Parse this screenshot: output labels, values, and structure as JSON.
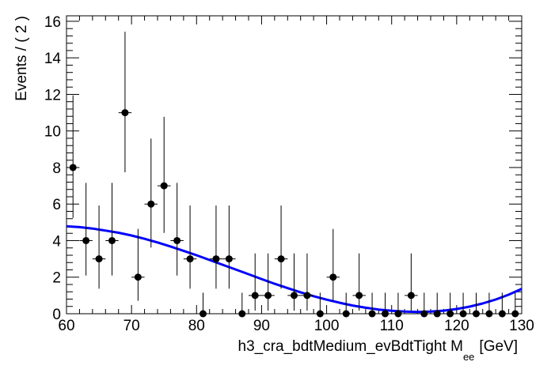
{
  "chart_data": {
    "type": "scatter",
    "xlabel_main": "h3_cra_bdtMedium_evBdtTight  M",
    "xlabel_sub": "ee",
    "xlabel_unit": "[GeV]",
    "ylabel": "Events / ( 2 )",
    "xlim": [
      60,
      130
    ],
    "ylim": [
      0,
      16.3
    ],
    "x_ticks": [
      60,
      70,
      80,
      90,
      100,
      110,
      120,
      130
    ],
    "y_ticks": [
      0,
      2,
      4,
      6,
      8,
      10,
      12,
      14,
      16
    ],
    "bin_width": 2,
    "series": [
      {
        "kind": "data-points",
        "x": [
          61,
          63,
          65,
          67,
          69,
          71,
          73,
          75,
          77,
          79,
          81,
          83,
          85,
          87,
          89,
          91,
          93,
          95,
          97,
          99,
          101,
          103,
          105,
          107,
          109,
          111,
          113,
          115,
          117,
          119,
          121,
          123,
          125,
          127,
          129
        ],
        "y": [
          8,
          4,
          3,
          4,
          11,
          2,
          6,
          7,
          4,
          3,
          0,
          3,
          3,
          0,
          1,
          1,
          3,
          1,
          1,
          0,
          2,
          0,
          1,
          0,
          0,
          0,
          1,
          0,
          0,
          0,
          0,
          0,
          0,
          0,
          0
        ],
        "err_low": [
          2.76,
          1.91,
          1.63,
          1.91,
          3.26,
          1.29,
          2.38,
          2.58,
          1.91,
          1.63,
          0,
          1.63,
          1.63,
          0,
          0.83,
          0.83,
          1.63,
          0.83,
          0.83,
          0,
          1.29,
          0,
          0.83,
          0,
          0,
          0,
          0.83,
          0,
          0,
          0,
          0,
          0,
          0,
          0,
          0
        ],
        "err_high": [
          3.95,
          3.16,
          2.92,
          3.16,
          4.43,
          2.64,
          3.58,
          3.77,
          3.16,
          2.92,
          1.15,
          2.92,
          2.92,
          1.15,
          2.3,
          2.3,
          2.92,
          2.3,
          2.3,
          1.15,
          2.64,
          1.15,
          2.3,
          1.15,
          1.15,
          1.15,
          2.3,
          1.15,
          1.15,
          1.15,
          1.15,
          1.15,
          1.15,
          1.15,
          1.15
        ],
        "color": "#000000"
      },
      {
        "kind": "fit-curve",
        "x": [
          60,
          62,
          64,
          66,
          68,
          70,
          72,
          74,
          76,
          78,
          80,
          82,
          84,
          86,
          88,
          90,
          92,
          94,
          96,
          98,
          100,
          102,
          104,
          106,
          108,
          110,
          112,
          114,
          116,
          118,
          120,
          122,
          124,
          126,
          128,
          130
        ],
        "y": [
          4.78,
          4.74,
          4.66,
          4.55,
          4.43,
          4.28,
          4.1,
          3.9,
          3.68,
          3.44,
          3.2,
          2.94,
          2.68,
          2.42,
          2.16,
          1.9,
          1.64,
          1.4,
          1.17,
          0.96,
          0.77,
          0.6,
          0.45,
          0.33,
          0.23,
          0.16,
          0.12,
          0.1,
          0.12,
          0.17,
          0.26,
          0.39,
          0.56,
          0.78,
          1.04,
          1.36
        ],
        "color": "#0000ff"
      }
    ]
  }
}
